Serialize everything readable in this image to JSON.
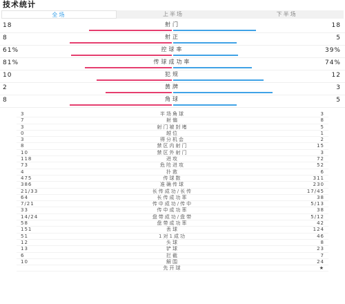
{
  "title": "技术统计",
  "tabs": [
    {
      "label": "全场",
      "active": true
    },
    {
      "label": "上半场",
      "active": false
    },
    {
      "label": "下半场",
      "active": false
    }
  ],
  "colors": {
    "home": "#e53d6e",
    "away": "#3fa2e6",
    "active_tab": "#3aa0e8"
  },
  "main_stats": [
    {
      "label": "射门",
      "home": "18",
      "away": "18",
      "home_frac": 0.5,
      "away_frac": 0.5
    },
    {
      "label": "射正",
      "home": "8",
      "away": "5",
      "home_frac": 0.615,
      "away_frac": 0.385
    },
    {
      "label": "控球率",
      "home": "61%",
      "away": "39%",
      "home_frac": 0.61,
      "away_frac": 0.39
    },
    {
      "label": "传球成功率",
      "home": "81%",
      "away": "74%",
      "home_frac": 0.523,
      "away_frac": 0.477
    },
    {
      "label": "犯规",
      "home": "10",
      "away": "12",
      "home_frac": 0.455,
      "away_frac": 0.545
    },
    {
      "label": "黄牌",
      "home": "2",
      "away": "3",
      "home_frac": 0.4,
      "away_frac": 0.6
    },
    {
      "label": "角球",
      "home": "8",
      "away": "5",
      "home_frac": 0.615,
      "away_frac": 0.385
    }
  ],
  "detail_stats": [
    {
      "label": "半场角球",
      "home": "3",
      "away": "3"
    },
    {
      "label": "射偏",
      "home": "7",
      "away": "8"
    },
    {
      "label": "射门被封堵",
      "home": "3",
      "away": "5"
    },
    {
      "label": "越位",
      "home": "0",
      "away": "1"
    },
    {
      "label": "得分机会",
      "home": "3",
      "away": "2"
    },
    {
      "label": "禁区内射门",
      "home": "8",
      "away": "15"
    },
    {
      "label": "禁区外射门",
      "home": "10",
      "away": "3"
    },
    {
      "label": "进攻",
      "home": "118",
      "away": "72"
    },
    {
      "label": "危险进攻",
      "home": "73",
      "away": "52"
    },
    {
      "label": "扑救",
      "home": "4",
      "away": "6"
    },
    {
      "label": "传球数",
      "home": "475",
      "away": "311"
    },
    {
      "label": "准确传球",
      "home": "386",
      "away": "230"
    },
    {
      "label": "长传成功/长传",
      "home": "21/33",
      "away": "17/45"
    },
    {
      "label": "长传成功率",
      "home": "64",
      "away": "38"
    },
    {
      "label": "传中成功/传中",
      "home": "7/21",
      "away": "5/13"
    },
    {
      "label": "传中成功率",
      "home": "33",
      "away": "38"
    },
    {
      "label": "盘带成功/盘带",
      "home": "14/24",
      "away": "5/12"
    },
    {
      "label": "盘带成功率",
      "home": "58",
      "away": "42"
    },
    {
      "label": "丢球",
      "home": "151",
      "away": "124"
    },
    {
      "label": "1对1成功",
      "home": "51",
      "away": "46"
    },
    {
      "label": "头球",
      "home": "12",
      "away": "8"
    },
    {
      "label": "铲球",
      "home": "13",
      "away": "23"
    },
    {
      "label": "拦截",
      "home": "6",
      "away": "7"
    },
    {
      "label": "解围",
      "home": "10",
      "away": "24"
    },
    {
      "label": "先开球",
      "home": "",
      "away": "★"
    }
  ]
}
